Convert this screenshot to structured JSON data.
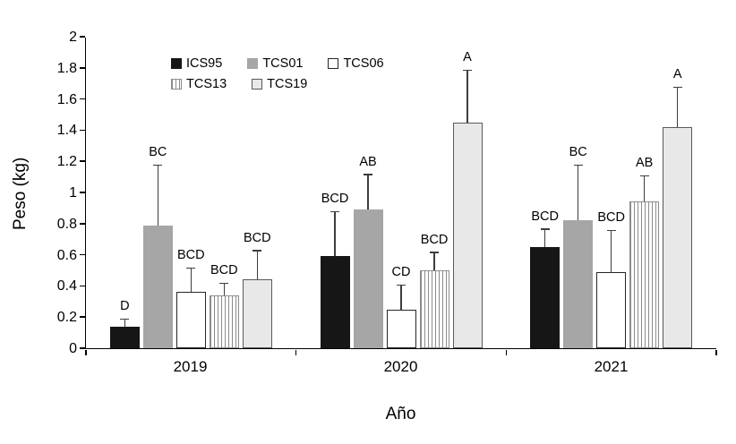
{
  "chart_data": {
    "type": "bar",
    "title": "",
    "xlabel": "Año",
    "ylabel": "Peso (kg)",
    "ylim": [
      0,
      2
    ],
    "ytick_step": 0.2,
    "yticks": [
      "0",
      "0.2",
      "0.4",
      "0.6",
      "0.8",
      "1",
      "1.2",
      "1.4",
      "1.6",
      "1.8",
      "2"
    ],
    "categories": [
      "2019",
      "2020",
      "2021"
    ],
    "grid": false,
    "legend_position": "top-left-inside",
    "legend_columns": 3,
    "error_bar_color": "#3d3d3d",
    "series": [
      {
        "name": "ICS95",
        "values": [
          0.14,
          0.59,
          0.65
        ],
        "errors": [
          0.05,
          0.29,
          0.12
        ],
        "sig_labels": [
          "D",
          "BCD",
          "BCD"
        ],
        "fill": "#161616",
        "border": "#161616",
        "pattern": "solid"
      },
      {
        "name": "TCS01",
        "values": [
          0.79,
          0.89,
          0.82
        ],
        "errors": [
          0.39,
          0.23,
          0.36
        ],
        "sig_labels": [
          "BC",
          "AB",
          "BC"
        ],
        "fill": "#a6a6a6",
        "border": "#a6a6a6",
        "pattern": "solid"
      },
      {
        "name": "TCS06",
        "values": [
          0.36,
          0.25,
          0.49
        ],
        "errors": [
          0.16,
          0.16,
          0.27
        ],
        "sig_labels": [
          "BCD",
          "CD",
          "BCD"
        ],
        "fill": "#ffffff",
        "border": "#262626",
        "pattern": "solid"
      },
      {
        "name": "TCS13",
        "values": [
          0.34,
          0.5,
          0.94
        ],
        "errors": [
          0.08,
          0.12,
          0.17
        ],
        "sig_labels": [
          "BCD",
          "BCD",
          "AB"
        ],
        "fill": "#ffffff",
        "border": "#8c8c8c",
        "stripe": "#8c8c8c",
        "pattern": "vertical-stripes"
      },
      {
        "name": "TCS19",
        "values": [
          0.44,
          1.45,
          1.42
        ],
        "errors": [
          0.19,
          0.34,
          0.26
        ],
        "sig_labels": [
          "BCD",
          "A",
          "A"
        ],
        "fill": "#e8e8e8",
        "border": "#595959",
        "pattern": "solid"
      }
    ]
  }
}
